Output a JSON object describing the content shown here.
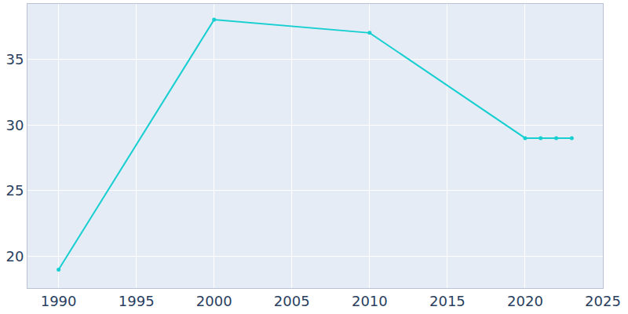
{
  "chart_data": {
    "type": "line",
    "x": [
      1990,
      2000,
      2010,
      2020,
      2021,
      2022,
      2023
    ],
    "values": [
      19,
      38,
      37,
      29,
      29,
      29,
      29
    ],
    "color": "#17cfd0",
    "marker": "circle",
    "xlim": [
      1988,
      2025
    ],
    "xticks": [
      1990,
      1995,
      2000,
      2005,
      2010,
      2015,
      2020,
      2025
    ],
    "ylim": [
      17.6,
      39.2
    ],
    "yticks": [
      20,
      25,
      30,
      35
    ],
    "grid": true
  }
}
